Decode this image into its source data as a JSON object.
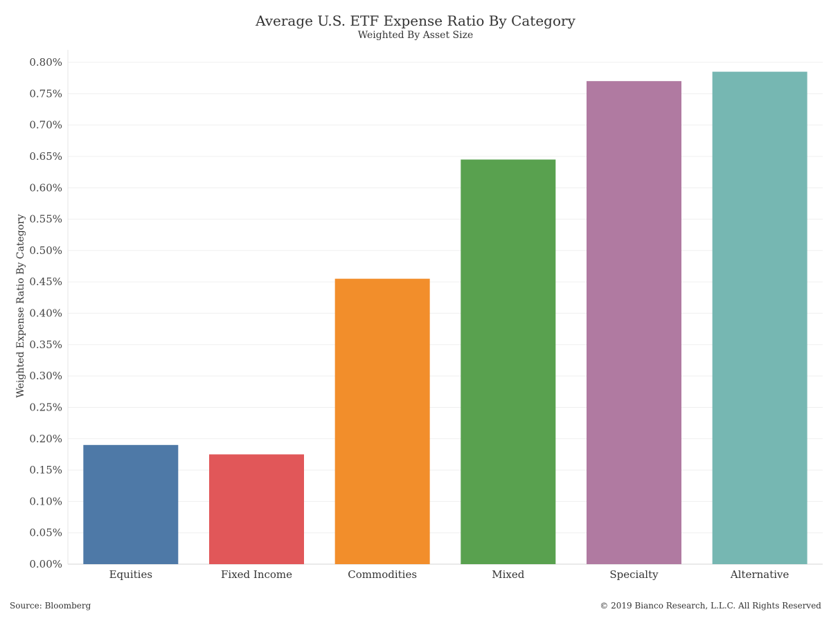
{
  "chart_data": {
    "type": "bar",
    "title": "Average U.S. ETF Expense Ratio By Category",
    "subtitle": "Weighted By Asset Size",
    "xlabel": "",
    "ylabel": "Weighted Expense Ratio By Category",
    "categories": [
      "Equities",
      "Fixed Income",
      "Commodities",
      "Mixed",
      "Specialty",
      "Alternative"
    ],
    "values": [
      0.19,
      0.175,
      0.455,
      0.645,
      0.77,
      0.785
    ],
    "value_unit": "%",
    "colors": [
      "#4e79a7",
      "#e15759",
      "#f28e2b",
      "#59a14f",
      "#b07aa1",
      "#76b7b2"
    ],
    "ylim": [
      0,
      0.8
    ],
    "yticks": [
      "0.00%",
      "0.05%",
      "0.10%",
      "0.15%",
      "0.20%",
      "0.25%",
      "0.30%",
      "0.35%",
      "0.40%",
      "0.45%",
      "0.50%",
      "0.55%",
      "0.60%",
      "0.65%",
      "0.70%",
      "0.75%",
      "0.80%"
    ],
    "grid": true,
    "legend": "none"
  },
  "footer": {
    "source": "Source: Bloomberg",
    "copyright": "© 2019 Bianco Research, L.L.C. All Rights Reserved"
  }
}
